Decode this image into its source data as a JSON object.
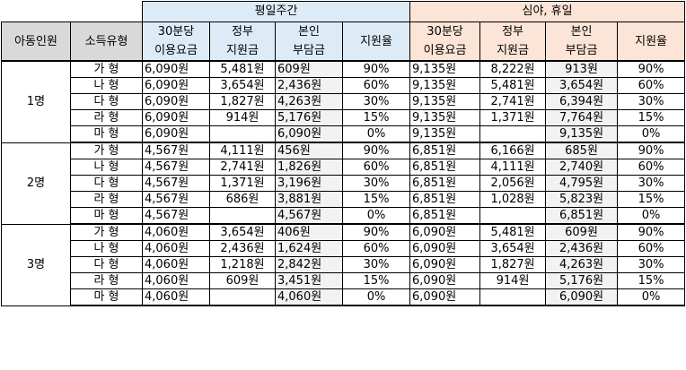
{
  "groups": {
    "weekday": "평일주간",
    "night_holiday": "심야, 휴일"
  },
  "headers": {
    "children": "아동인원",
    "income_type": "소득유형",
    "fee": "30분당\n이용요금",
    "gov_support": "정부\n지원금",
    "self_pay": "본인\n부담금",
    "support_rate": "지원율"
  },
  "rows": [
    {
      "children": "1명",
      "types": [
        {
          "type": "가 형",
          "wd": [
            "6,090원",
            "5,481원",
            "609원",
            "90%"
          ],
          "nh": [
            "9,135원",
            "8,222원",
            "913원",
            "90%"
          ]
        },
        {
          "type": "나 형",
          "wd": [
            "6,090원",
            "3,654원",
            "2,436원",
            "60%"
          ],
          "nh": [
            "9,135원",
            "5,481원",
            "3,654원",
            "60%"
          ]
        },
        {
          "type": "다 형",
          "wd": [
            "6,090원",
            "1,827원",
            "4,263원",
            "30%"
          ],
          "nh": [
            "9,135원",
            "2,741원",
            "6,394원",
            "30%"
          ]
        },
        {
          "type": "라 형",
          "wd": [
            "6,090원",
            "914원",
            "5,176원",
            "15%"
          ],
          "nh": [
            "9,135원",
            "1,371원",
            "7,764원",
            "15%"
          ]
        },
        {
          "type": "마 형",
          "wd": [
            "6,090원",
            "",
            "6,090원",
            "0%"
          ],
          "nh": [
            "9,135원",
            "",
            "9,135원",
            "0%"
          ]
        }
      ]
    },
    {
      "children": "2명",
      "types": [
        {
          "type": "가 형",
          "wd": [
            "4,567원",
            "4,111원",
            "456원",
            "90%"
          ],
          "nh": [
            "6,851원",
            "6,166원",
            "685원",
            "90%"
          ]
        },
        {
          "type": "나 형",
          "wd": [
            "4,567원",
            "2,741원",
            "1,826원",
            "60%"
          ],
          "nh": [
            "6,851원",
            "4,111원",
            "2,740원",
            "60%"
          ]
        },
        {
          "type": "다 형",
          "wd": [
            "4,567원",
            "1,371원",
            "3,196원",
            "30%"
          ],
          "nh": [
            "6,851원",
            "2,056원",
            "4,795원",
            "30%"
          ]
        },
        {
          "type": "라 형",
          "wd": [
            "4,567원",
            "686원",
            "3,881원",
            "15%"
          ],
          "nh": [
            "6,851원",
            "1,028원",
            "5,823원",
            "15%"
          ]
        },
        {
          "type": "마 형",
          "wd": [
            "4,567원",
            "",
            "4,567원",
            "0%"
          ],
          "nh": [
            "6,851원",
            "",
            "6,851원",
            "0%"
          ]
        }
      ]
    },
    {
      "children": "3명",
      "types": [
        {
          "type": "가 형",
          "wd": [
            "4,060원",
            "3,654원",
            "406원",
            "90%"
          ],
          "nh": [
            "6,090원",
            "5,481원",
            "609원",
            "90%"
          ]
        },
        {
          "type": "나 형",
          "wd": [
            "4,060원",
            "2,436원",
            "1,624원",
            "60%"
          ],
          "nh": [
            "6,090원",
            "3,654원",
            "2,436원",
            "60%"
          ]
        },
        {
          "type": "다 형",
          "wd": [
            "4,060원",
            "1,218원",
            "2,842원",
            "30%"
          ],
          "nh": [
            "6,090원",
            "1,827원",
            "4,263원",
            "30%"
          ]
        },
        {
          "type": "라 형",
          "wd": [
            "4,060원",
            "609원",
            "3,451원",
            "15%"
          ],
          "nh": [
            "6,090원",
            "914원",
            "5,176원",
            "15%"
          ]
        },
        {
          "type": "마 형",
          "wd": [
            "4,060원",
            "",
            "4,060원",
            "0%"
          ],
          "nh": [
            "6,090원",
            "",
            "6,090원",
            "0%"
          ]
        }
      ]
    }
  ]
}
